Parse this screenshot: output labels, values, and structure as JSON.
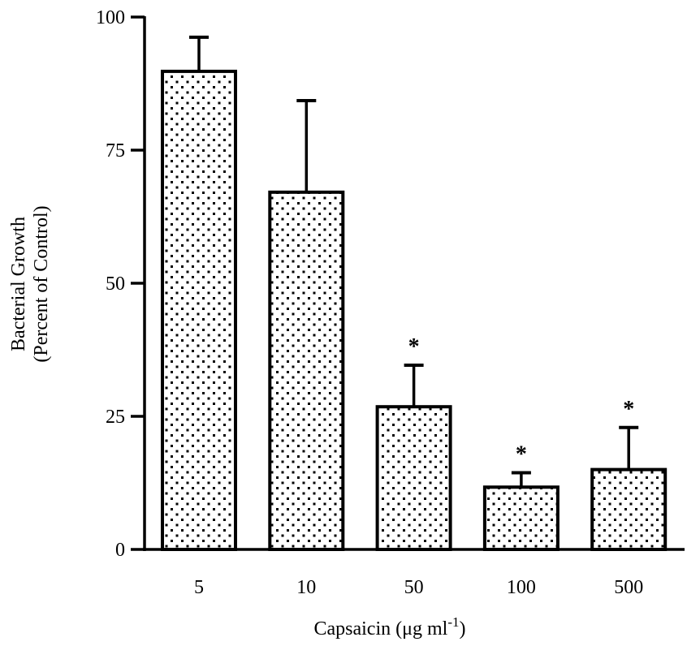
{
  "chart_data": {
    "type": "bar",
    "title": "",
    "categories": [
      "5",
      "10",
      "50",
      "100",
      "500"
    ],
    "values": [
      89.8,
      67.1,
      26.8,
      11.7,
      15.0
    ],
    "error_upper": [
      96.2,
      84.3,
      34.6,
      14.4,
      22.9
    ],
    "significant": [
      false,
      false,
      true,
      true,
      true
    ],
    "significance_marker": "*",
    "xlabel": "Capsaicin  (μg ml",
    "xlabel_superscript": "-1",
    "xlabel_suffix": ")",
    "ylabel_line1": "Bacterial Growth",
    "ylabel_line2": "(Percent of Control)",
    "ylim": [
      0,
      100
    ],
    "yticks": [
      0,
      25,
      50,
      75,
      100
    ],
    "grid": false,
    "bar_fill": "dotted pattern",
    "colors": {
      "ink": "#000000",
      "background": "#ffffff"
    }
  }
}
